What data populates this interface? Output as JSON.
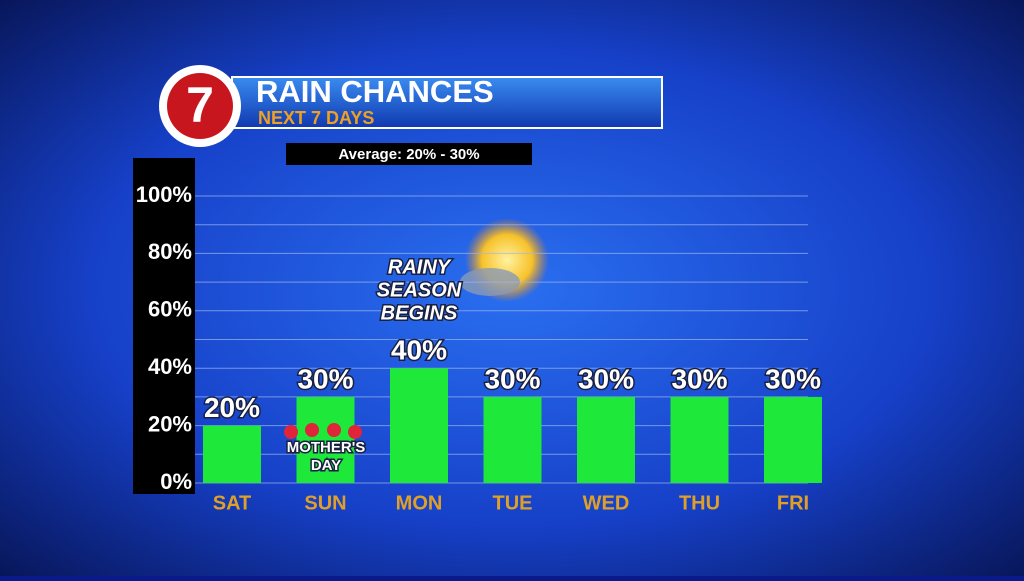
{
  "chart_data": {
    "type": "bar",
    "channel_logo": "7",
    "title": "RAIN CHANCES",
    "subtitle": "NEXT 7 DAYS",
    "average_note": "Average: 20% - 30%",
    "annotations": [
      "RAINY",
      "SEASON",
      "BEGINS"
    ],
    "holiday_note": [
      "MOTHER'S",
      "DAY"
    ],
    "categories": [
      "SAT",
      "SUN",
      "MON",
      "TUE",
      "WED",
      "THU",
      "FRI"
    ],
    "values": [
      20,
      30,
      40,
      30,
      30,
      30,
      30
    ],
    "value_labels": [
      "20%",
      "30%",
      "40%",
      "30%",
      "30%",
      "30%",
      "30%"
    ],
    "color": "#1ee83a",
    "ylim": [
      0,
      100
    ],
    "yticks": [
      {
        "value": 0,
        "label": "0%"
      },
      {
        "value": 20,
        "label": "20%"
      },
      {
        "value": 40,
        "label": "40%"
      },
      {
        "value": 60,
        "label": "60%"
      },
      {
        "value": 80,
        "label": "80%"
      },
      {
        "value": 100,
        "label": "100%"
      }
    ],
    "minor_yticks": [
      10,
      30,
      50,
      70,
      90
    ],
    "grid": true
  }
}
